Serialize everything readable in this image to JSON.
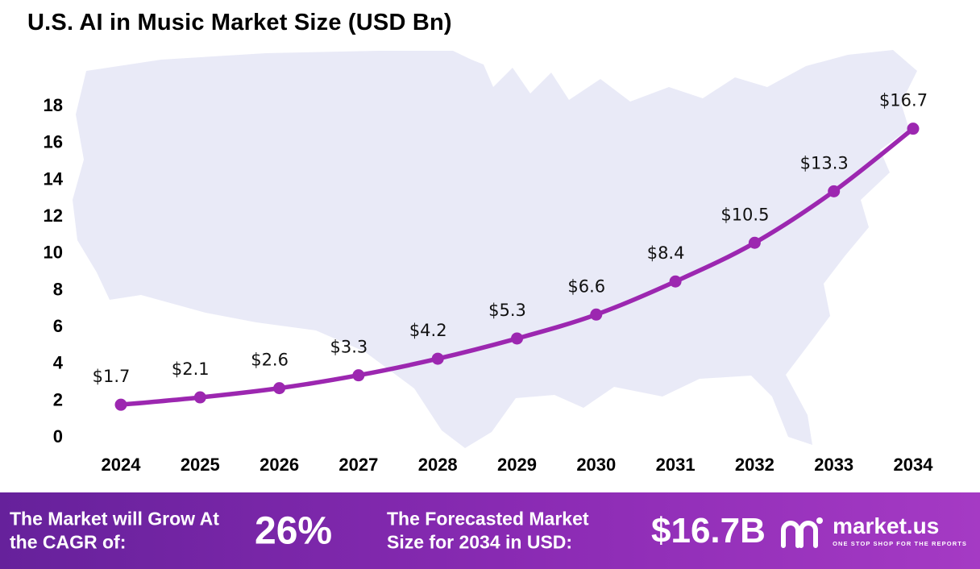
{
  "title": "U.S. AI in Music Market Size (USD Bn)",
  "chart_data": {
    "type": "line",
    "title": "U.S. AI in Music Market Size (USD Bn)",
    "x": [
      "2024",
      "2025",
      "2026",
      "2027",
      "2028",
      "2029",
      "2030",
      "2031",
      "2032",
      "2033",
      "2034"
    ],
    "values": [
      1.7,
      2.1,
      2.6,
      3.3,
      4.2,
      5.3,
      6.6,
      8.4,
      10.5,
      13.3,
      16.7
    ],
    "point_labels": [
      "$1.7",
      "$2.1",
      "$2.6",
      "$3.3",
      "$4.2",
      "$5.3",
      "$6.6",
      "$8.4",
      "$10.5",
      "$13.3",
      "$16.7"
    ],
    "xlabel": "",
    "ylabel": "",
    "ylim": [
      0,
      18
    ],
    "ytick_step": 2,
    "grid": false,
    "legend": "none",
    "line_color": "#9c27b0",
    "label_color": "#111111"
  },
  "footer": {
    "cagr_label": "The Market will Grow At the CAGR of:",
    "cagr_value": "26%",
    "forecast_label": "The Forecasted Market Size for 2034 in USD:",
    "forecast_value": "$16.7B",
    "brand_name": "market.us",
    "brand_tagline": "ONE STOP SHOP FOR THE REPORTS"
  },
  "colors": {
    "accent": "#9c27b0",
    "footer_gradient_left": "#66219b",
    "footer_gradient_right": "#a53ac4",
    "map_fill": "#e9eaf7"
  }
}
